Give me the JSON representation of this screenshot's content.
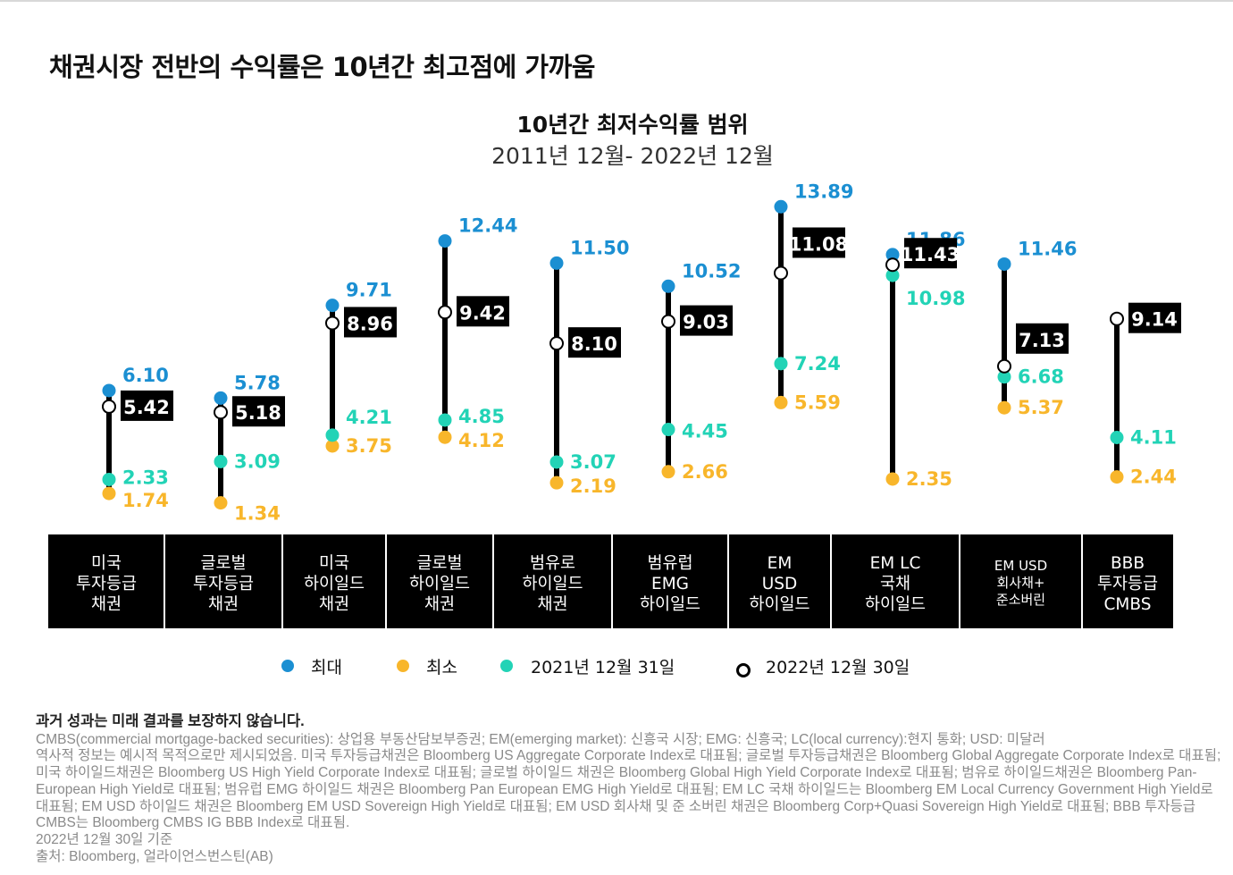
{
  "page_title": "채권시장 전반의 수익률은 10년간 최고점에 가까움",
  "chart_data": {
    "type": "range-dot",
    "title": "10년간 최저수익률 범위",
    "subtitle": "2011년 12월- 2022년 12월",
    "categories": [
      "미국\n투자등급\n채권",
      "글로벌\n투자등급\n채권",
      "미국\n하이일드\n채권",
      "글로벌\n하이일드\n채권",
      "범유로\n하이일드\n채권",
      "범유럽\nEMG\n하이일드",
      "EM\nUSD\n하이일드",
      "EM LC\n국채\n하이일드",
      "EM USD\n회사채+\n준소버린",
      "BBB\n투자등급\nCMBS"
    ],
    "series": [
      {
        "name": "최대",
        "color": "#1b8fd2",
        "values": [
          "6.10",
          "5.78",
          "9.71",
          "12.44",
          "11.50",
          "10.52",
          "13.89",
          "11.86",
          "11.46",
          null
        ]
      },
      {
        "name": "최소",
        "color": "#f8b62b",
        "values": [
          "1.74",
          "1.34",
          "3.75",
          "4.12",
          "2.19",
          "2.66",
          "5.59",
          "2.35",
          "5.37",
          "2.44"
        ]
      },
      {
        "name": "2021년 12월 31일",
        "color": "#22d3b6",
        "values": [
          "2.33",
          "3.09",
          "4.21",
          "4.85",
          "3.07",
          "4.45",
          "7.24",
          "10.98",
          "6.68",
          "4.11"
        ]
      },
      {
        "name": "2022년 12월 30일",
        "color": "#000000",
        "values": [
          "5.42",
          "5.18",
          "8.96",
          "9.42",
          "8.10",
          "9.03",
          "11.08",
          "11.43",
          "7.13",
          "9.14"
        ]
      }
    ],
    "legend_position": "bottom",
    "grid": false
  },
  "footnote": {
    "heading": "과거 성과는 미래 결과를 보장하지 않습니다.",
    "lines": [
      "CMBS(commercial mortgage-backed securities): 상업용 부동산담보부증권; EM(emerging market): 신흥국 시장; EMG: 신흥국; LC(local currency):현지 통화; USD: 미달러",
      "역사적 정보는 예시적 목적으로만 제시되었음. 미국 투자등급채권은 Bloomberg US Aggregate Corporate Index로 대표됨; 글로벌 투자등급채권은 Bloomberg Global Aggregate Corporate Index로 대표됨; 미국 하이일드채권은 Bloomberg US High Yield Corporate Index로 대표됨; 글로벌 하이일드 채권은 Bloomberg Global High Yield Corporate Index로 대표됨; 범유로 하이일드채권은 Bloomberg Pan-European High Yield로 대표됨; 범유럽 EMG 하이일드 채권은 Bloomberg Pan European EMG High Yield로 대표됨; EM LC 국채 하이일드는 Bloomberg EM Local Currency Government High Yield로 대표됨; EM USD 하이일드 채권은 Bloomberg EM USD Sovereign High Yield로 대표됨; EM USD 회사채 및 준 소버린 채권은 Bloomberg Corp+Quasi Sovereign High Yield로 대표됨; BBB 투자등급 CMBS는 Bloomberg CMBS IG BBB Index로 대표됨.",
      "2022년 12월 30일 기준",
      "출처: Bloomberg, 얼라이언스번스틴(AB)"
    ]
  }
}
